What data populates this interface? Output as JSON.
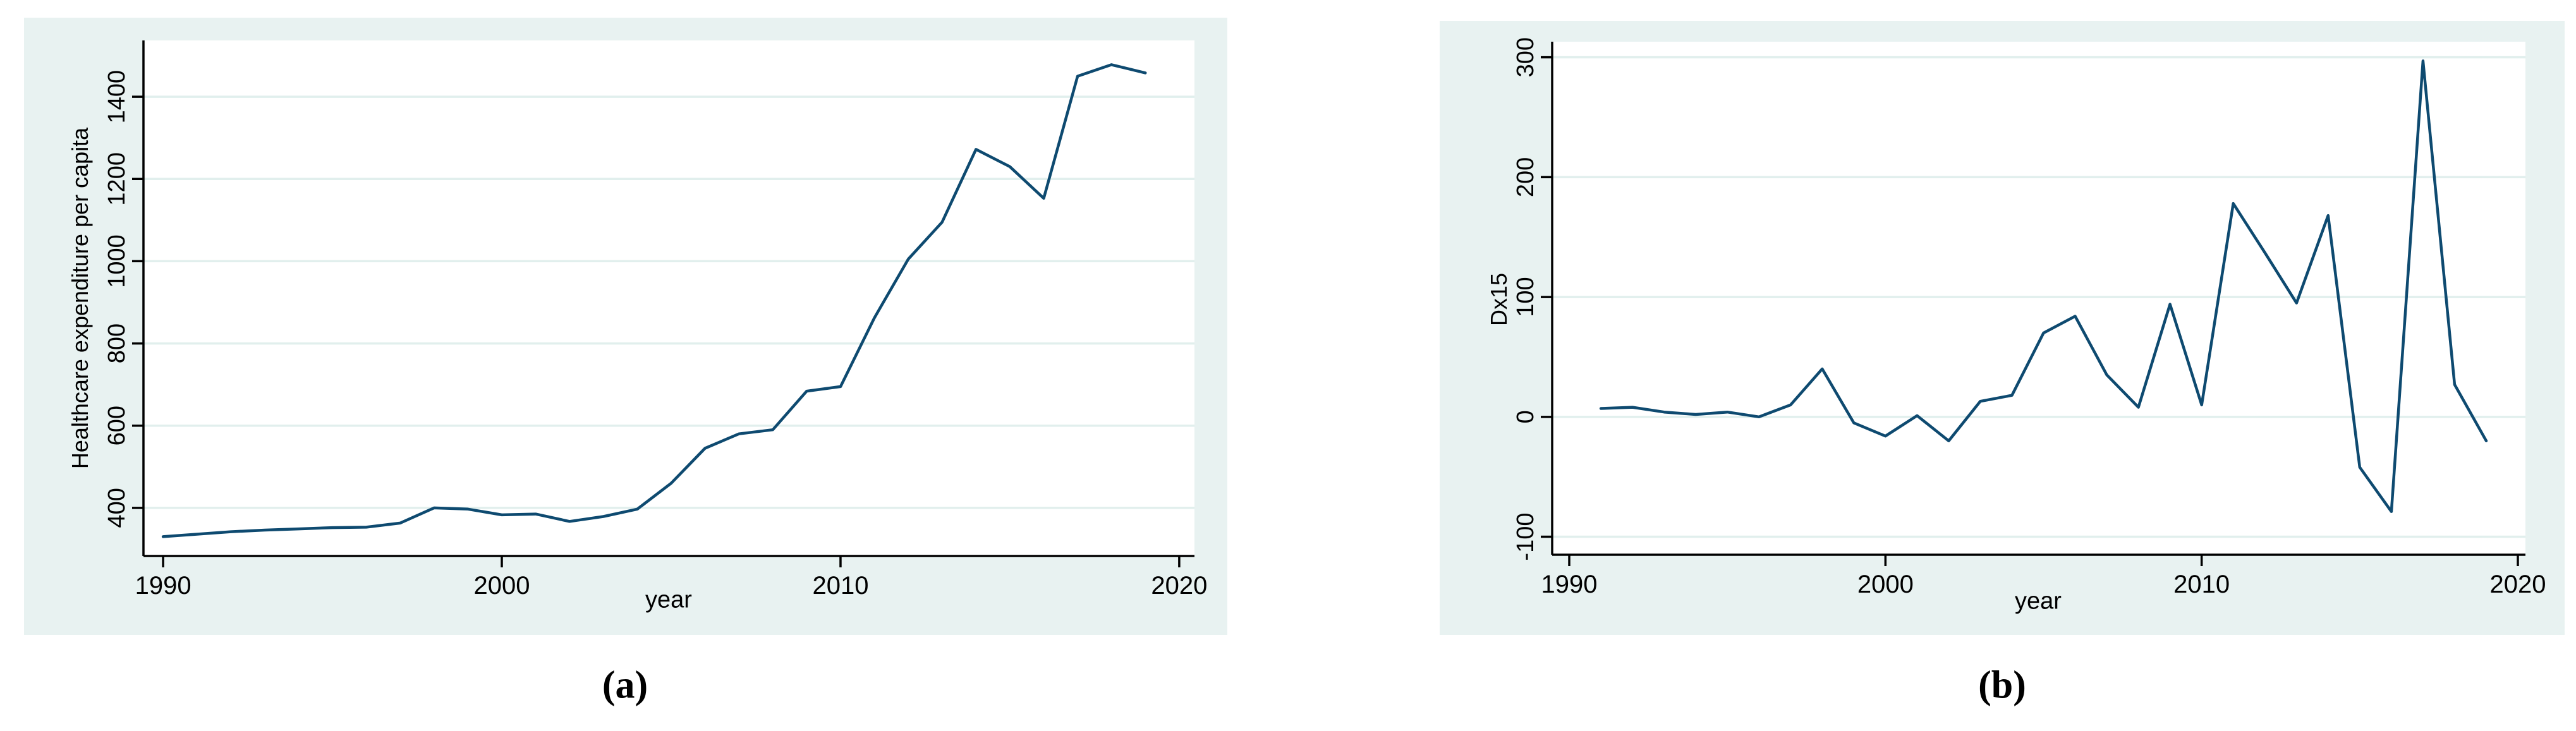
{
  "style": {
    "page_background": "#ffffff",
    "panel_background": "#e8f2f1",
    "plot_background": "#ffffff",
    "grid_color": "#e1efed",
    "line_color": "#0e4a70",
    "axis_color": "#000000",
    "text_color": "#000000"
  },
  "chart_data": [
    {
      "id": "a",
      "type": "line",
      "caption": "(a)",
      "title": "",
      "xlabel": "year",
      "ylabel": "Healthcare expenditure per capita",
      "x_ticks": [
        1990,
        2000,
        2010,
        2020
      ],
      "y_ticks": [
        400,
        600,
        800,
        1000,
        1200,
        1400
      ],
      "xlim": [
        1989.42,
        2020.45
      ],
      "ylim": [
        283,
        1537
      ],
      "grid": "horizontal",
      "legend": "none",
      "series": {
        "x": [
          1990,
          1991,
          1992,
          1993,
          1994,
          1995,
          1996,
          1997,
          1998,
          1999,
          2000,
          2001,
          2002,
          2003,
          2004,
          2005,
          2006,
          2007,
          2008,
          2009,
          2010,
          2011,
          2012,
          2013,
          2014,
          2015,
          2016,
          2017,
          2018,
          2019
        ],
        "y": [
          330,
          336,
          342,
          346,
          349,
          352,
          353,
          363,
          400,
          397,
          383,
          385,
          367,
          379,
          397,
          460,
          545,
          580,
          590,
          684,
          695,
          862,
          1005,
          1095,
          1272,
          1230,
          1153,
          1450,
          1478,
          1458
        ]
      }
    },
    {
      "id": "b",
      "type": "line",
      "caption": "(b)",
      "title": "",
      "xlabel": "year",
      "ylabel": "Dx15",
      "x_ticks": [
        1990,
        2000,
        2010,
        2020
      ],
      "y_ticks": [
        -100,
        0,
        100,
        200,
        300
      ],
      "xlim": [
        1989.46,
        2020.24
      ],
      "ylim": [
        -115,
        313
      ],
      "grid": "horizontal",
      "legend": "none",
      "series": {
        "x": [
          1991,
          1992,
          1993,
          1994,
          1995,
          1996,
          1997,
          1998,
          1999,
          2000,
          2001,
          2002,
          2003,
          2004,
          2005,
          2006,
          2007,
          2008,
          2009,
          2010,
          2011,
          2012,
          2013,
          2014,
          2015,
          2016,
          2017,
          2018,
          2019
        ],
        "y": [
          7,
          8,
          4,
          2,
          4,
          0,
          10,
          40,
          -5,
          -16,
          1,
          -20,
          13,
          18,
          70,
          84,
          35,
          8,
          94,
          10,
          178,
          137,
          95,
          168,
          -42,
          -79,
          297,
          27,
          -20
        ]
      }
    }
  ]
}
